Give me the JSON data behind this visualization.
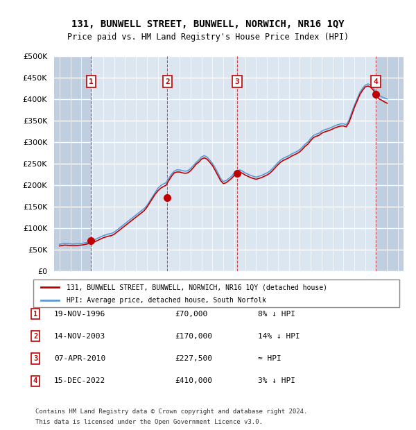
{
  "title": "131, BUNWELL STREET, BUNWELL, NORWICH, NR16 1QY",
  "subtitle": "Price paid vs. HM Land Registry's House Price Index (HPI)",
  "ylabel_ticks": [
    "£0",
    "£50K",
    "£100K",
    "£150K",
    "£200K",
    "£250K",
    "£300K",
    "£350K",
    "£400K",
    "£450K",
    "£500K"
  ],
  "ytick_values": [
    0,
    50000,
    100000,
    150000,
    200000,
    250000,
    300000,
    350000,
    400000,
    450000,
    500000
  ],
  "xlim": [
    1993.5,
    2025.5
  ],
  "ylim": [
    0,
    500000
  ],
  "bg_color": "#dce6f1",
  "hatch_color": "#c0cfe0",
  "grid_color": "#ffffff",
  "transactions": [
    {
      "num": 1,
      "date": "19-NOV-1996",
      "year": 1996.88,
      "price": 70000,
      "label": "8% ↓ HPI"
    },
    {
      "num": 2,
      "date": "14-NOV-2003",
      "year": 2003.87,
      "price": 170000,
      "label": "14% ↓ HPI"
    },
    {
      "num": 3,
      "date": "07-APR-2010",
      "year": 2010.27,
      "price": 227500,
      "label": "≈ HPI"
    },
    {
      "num": 4,
      "date": "15-DEC-2022",
      "year": 2022.96,
      "price": 410000,
      "label": "3% ↓ HPI"
    }
  ],
  "hpi_line_color": "#5b9bd5",
  "price_line_color": "#c00000",
  "transaction_marker_color": "#c00000",
  "transaction_box_color": "#c00000",
  "legend_line1": "131, BUNWELL STREET, BUNWELL, NORWICH, NR16 1QY (detached house)",
  "legend_line2": "HPI: Average price, detached house, South Norfolk",
  "footer1": "Contains HM Land Registry data © Crown copyright and database right 2024.",
  "footer2": "This data is licensed under the Open Government Licence v3.0.",
  "hpi_data": {
    "years": [
      1994.0,
      1994.25,
      1994.5,
      1994.75,
      1995.0,
      1995.25,
      1995.5,
      1995.75,
      1996.0,
      1996.25,
      1996.5,
      1996.75,
      1997.0,
      1997.25,
      1997.5,
      1997.75,
      1998.0,
      1998.25,
      1998.5,
      1998.75,
      1999.0,
      1999.25,
      1999.5,
      1999.75,
      2000.0,
      2000.25,
      2000.5,
      2000.75,
      2001.0,
      2001.25,
      2001.5,
      2001.75,
      2002.0,
      2002.25,
      2002.5,
      2002.75,
      2003.0,
      2003.25,
      2003.5,
      2003.75,
      2004.0,
      2004.25,
      2004.5,
      2004.75,
      2005.0,
      2005.25,
      2005.5,
      2005.75,
      2006.0,
      2006.25,
      2006.5,
      2006.75,
      2007.0,
      2007.25,
      2007.5,
      2007.75,
      2008.0,
      2008.25,
      2008.5,
      2008.75,
      2009.0,
      2009.25,
      2009.5,
      2009.75,
      2010.0,
      2010.25,
      2010.5,
      2010.75,
      2011.0,
      2011.25,
      2011.5,
      2011.75,
      2012.0,
      2012.25,
      2012.5,
      2012.75,
      2013.0,
      2013.25,
      2013.5,
      2013.75,
      2014.0,
      2014.25,
      2014.5,
      2014.75,
      2015.0,
      2015.25,
      2015.5,
      2015.75,
      2016.0,
      2016.25,
      2016.5,
      2016.75,
      2017.0,
      2017.25,
      2017.5,
      2017.75,
      2018.0,
      2018.25,
      2018.5,
      2018.75,
      2019.0,
      2019.25,
      2019.5,
      2019.75,
      2020.0,
      2020.25,
      2020.5,
      2020.75,
      2021.0,
      2021.25,
      2021.5,
      2021.75,
      2022.0,
      2022.25,
      2022.5,
      2022.75,
      2023.0,
      2023.25,
      2023.5,
      2023.75,
      2024.0
    ],
    "values": [
      62000,
      63000,
      64000,
      63500,
      63000,
      62500,
      63000,
      63500,
      64000,
      65000,
      66000,
      67000,
      70000,
      73000,
      76000,
      79000,
      82000,
      84000,
      86000,
      87000,
      90000,
      95000,
      100000,
      105000,
      110000,
      115000,
      120000,
      125000,
      130000,
      135000,
      140000,
      145000,
      152000,
      162000,
      172000,
      182000,
      192000,
      198000,
      202000,
      205000,
      215000,
      225000,
      232000,
      235000,
      235000,
      233000,
      232000,
      233000,
      238000,
      245000,
      252000,
      258000,
      265000,
      268000,
      265000,
      258000,
      250000,
      240000,
      228000,
      215000,
      208000,
      210000,
      215000,
      220000,
      228000,
      232000,
      235000,
      232000,
      228000,
      225000,
      222000,
      220000,
      218000,
      220000,
      222000,
      225000,
      228000,
      232000,
      238000,
      245000,
      252000,
      258000,
      262000,
      265000,
      268000,
      272000,
      275000,
      278000,
      282000,
      288000,
      295000,
      300000,
      308000,
      315000,
      318000,
      320000,
      325000,
      328000,
      330000,
      332000,
      335000,
      338000,
      340000,
      342000,
      342000,
      340000,
      350000,
      368000,
      385000,
      400000,
      415000,
      425000,
      432000,
      435000,
      432000,
      425000,
      415000,
      408000,
      405000,
      402000,
      400000
    ]
  },
  "price_data": {
    "years": [
      1994.0,
      1994.25,
      1994.5,
      1994.75,
      1995.0,
      1995.25,
      1995.5,
      1995.75,
      1996.0,
      1996.25,
      1996.5,
      1996.75,
      1997.0,
      1997.25,
      1997.5,
      1997.75,
      1998.0,
      1998.25,
      1998.5,
      1998.75,
      1999.0,
      1999.25,
      1999.5,
      1999.75,
      2000.0,
      2000.25,
      2000.5,
      2000.75,
      2001.0,
      2001.25,
      2001.5,
      2001.75,
      2002.0,
      2002.25,
      2002.5,
      2002.75,
      2003.0,
      2003.25,
      2003.5,
      2003.75,
      2004.0,
      2004.25,
      2004.5,
      2004.75,
      2005.0,
      2005.25,
      2005.5,
      2005.75,
      2006.0,
      2006.25,
      2006.5,
      2006.75,
      2007.0,
      2007.25,
      2007.5,
      2007.75,
      2008.0,
      2008.25,
      2008.5,
      2008.75,
      2009.0,
      2009.25,
      2009.5,
      2009.75,
      2010.0,
      2010.25,
      2010.5,
      2010.75,
      2011.0,
      2011.25,
      2011.5,
      2011.75,
      2012.0,
      2012.25,
      2012.5,
      2012.75,
      2013.0,
      2013.25,
      2013.5,
      2013.75,
      2014.0,
      2014.25,
      2014.5,
      2014.75,
      2015.0,
      2015.25,
      2015.5,
      2015.75,
      2016.0,
      2016.25,
      2016.5,
      2016.75,
      2017.0,
      2017.25,
      2017.5,
      2017.75,
      2018.0,
      2018.25,
      2018.5,
      2018.75,
      2019.0,
      2019.25,
      2019.5,
      2019.75,
      2020.0,
      2020.25,
      2020.5,
      2020.75,
      2021.0,
      2021.25,
      2021.5,
      2021.75,
      2022.0,
      2022.25,
      2022.5,
      2022.75,
      2023.0,
      2023.25,
      2023.5,
      2023.75,
      2024.0
    ],
    "values": [
      58000,
      59000,
      60000,
      59500,
      59000,
      58500,
      59000,
      59500,
      60000,
      61000,
      62500,
      64000,
      65500,
      68000,
      71000,
      74000,
      77000,
      79000,
      81000,
      82000,
      85000,
      90000,
      95000,
      100000,
      105000,
      110000,
      115000,
      120000,
      125000,
      130000,
      135000,
      140000,
      148000,
      158000,
      168000,
      178000,
      186000,
      192000,
      196000,
      199000,
      210000,
      220000,
      228000,
      230000,
      230000,
      228000,
      227000,
      228000,
      233000,
      240000,
      248000,
      253000,
      260000,
      263000,
      260000,
      253000,
      245000,
      234000,
      222000,
      210000,
      203000,
      205000,
      210000,
      215000,
      222000,
      227000,
      230000,
      227000,
      223000,
      220000,
      217000,
      215000,
      213000,
      215000,
      217000,
      220000,
      223000,
      227000,
      233000,
      240000,
      247000,
      253000,
      257000,
      260000,
      263000,
      267000,
      270000,
      273000,
      277000,
      283000,
      290000,
      295000,
      303000,
      310000,
      313000,
      315000,
      320000,
      323000,
      325000,
      327000,
      330000,
      333000,
      335000,
      337000,
      337000,
      335000,
      345000,
      362000,
      380000,
      395000,
      410000,
      420000,
      428000,
      430000,
      427000,
      420000,
      408000,
      400000,
      397000,
      393000,
      390000
    ]
  }
}
